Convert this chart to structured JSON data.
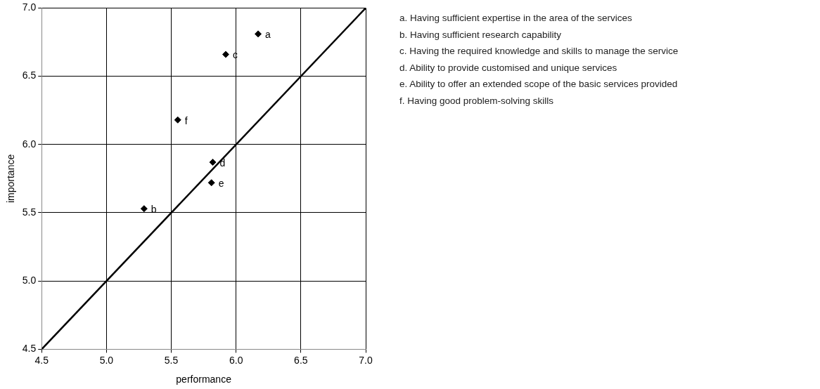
{
  "chart_data": {
    "type": "scatter",
    "xlabel": "performance",
    "ylabel": "importance",
    "series": [
      {
        "color": "#000000",
        "marker": "diamond",
        "x": [
          6.17,
          5.29,
          5.92,
          5.82,
          5.81,
          5.55
        ],
        "values": [
          6.81,
          5.53,
          6.66,
          5.87,
          5.72,
          6.18
        ]
      },
      {
        "type": "line",
        "color": "#000000",
        "marker": "none",
        "x": [
          4.5,
          7.0
        ],
        "values": [
          4.5,
          7.0
        ]
      }
    ],
    "xlim": [
      4.5,
      7.0
    ],
    "ylim": [
      4.5,
      7.0
    ],
    "xticks": [
      {
        "value": 4.5,
        "label": "4.5"
      },
      {
        "value": 5,
        "label": "5.0"
      },
      {
        "value": 5.5,
        "label": "5.5"
      },
      {
        "value": 6,
        "label": "6.0"
      },
      {
        "value": 6.5,
        "label": "6.5"
      },
      {
        "value": 7,
        "label": "7.0"
      }
    ],
    "yticks": [
      {
        "value": 4.5,
        "label": "4.5"
      },
      {
        "value": 5,
        "label": "5.0"
      },
      {
        "value": 5.5,
        "label": "5.5"
      },
      {
        "value": 6,
        "label": "6.0"
      },
      {
        "value": 6.5,
        "label": "6.5"
      },
      {
        "value": 7,
        "label": "7.0"
      }
    ],
    "grid": true,
    "legend": false,
    "annotations": [
      {
        "text": "a",
        "x": 6.17,
        "y": 6.81
      },
      {
        "text": "b",
        "x": 5.29,
        "y": 5.53
      },
      {
        "text": "c",
        "x": 5.92,
        "y": 6.66
      },
      {
        "text": "d",
        "x": 5.82,
        "y": 5.87
      },
      {
        "text": "e",
        "x": 5.81,
        "y": 5.72
      },
      {
        "text": "f",
        "x": 5.55,
        "y": 6.18
      },
      "a. Having sufficient expertise in the area of the services",
      "b. Having sufficient research capability",
      "c. Having the required knowledge and skills to manage the service",
      "d. Ability to provide customised and unique services",
      "e. Ability to offer an extended scope of the basic services provided",
      "f. Having good problem-solving skills"
    ]
  }
}
